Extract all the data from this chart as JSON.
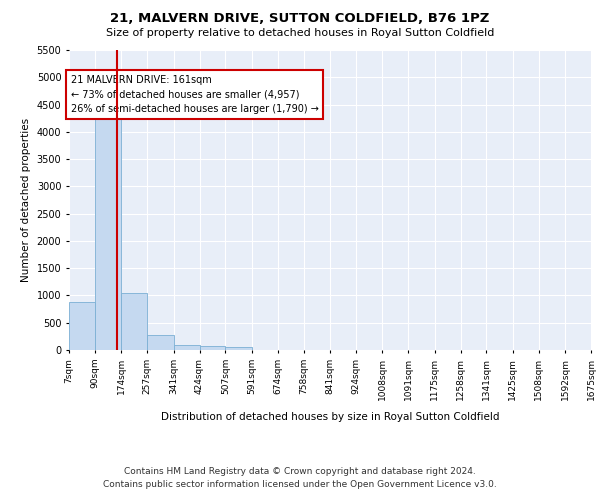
{
  "title": "21, MALVERN DRIVE, SUTTON COLDFIELD, B76 1PZ",
  "subtitle": "Size of property relative to detached houses in Royal Sutton Coldfield",
  "xlabel": "Distribution of detached houses by size in Royal Sutton Coldfield",
  "ylabel": "Number of detached properties",
  "footer_line1": "Contains HM Land Registry data © Crown copyright and database right 2024.",
  "footer_line2": "Contains public sector information licensed under the Open Government Licence v3.0.",
  "property_size": 161,
  "annotation_text_line1": "21 MALVERN DRIVE: 161sqm",
  "annotation_text_line2": "← 73% of detached houses are smaller (4,957)",
  "annotation_text_line3": "26% of semi-detached houses are larger (1,790) →",
  "bar_color": "#c5d9f0",
  "bar_edge_color": "#7bafd4",
  "vline_color": "#cc0000",
  "background_color": "#e8eef8",
  "bin_edges": [
    7,
    90,
    174,
    257,
    341,
    424,
    507,
    591,
    674,
    758,
    841,
    924,
    1008,
    1091,
    1175,
    1258,
    1341,
    1425,
    1508,
    1592,
    1675
  ],
  "bar_heights": [
    880,
    4500,
    1050,
    275,
    90,
    75,
    50,
    0,
    0,
    0,
    0,
    0,
    0,
    0,
    0,
    0,
    0,
    0,
    0,
    0
  ],
  "ylim": [
    0,
    5500
  ],
  "yticks": [
    0,
    500,
    1000,
    1500,
    2000,
    2500,
    3000,
    3500,
    4000,
    4500,
    5000,
    5500
  ],
  "figsize": [
    6.0,
    5.0
  ],
  "dpi": 100
}
